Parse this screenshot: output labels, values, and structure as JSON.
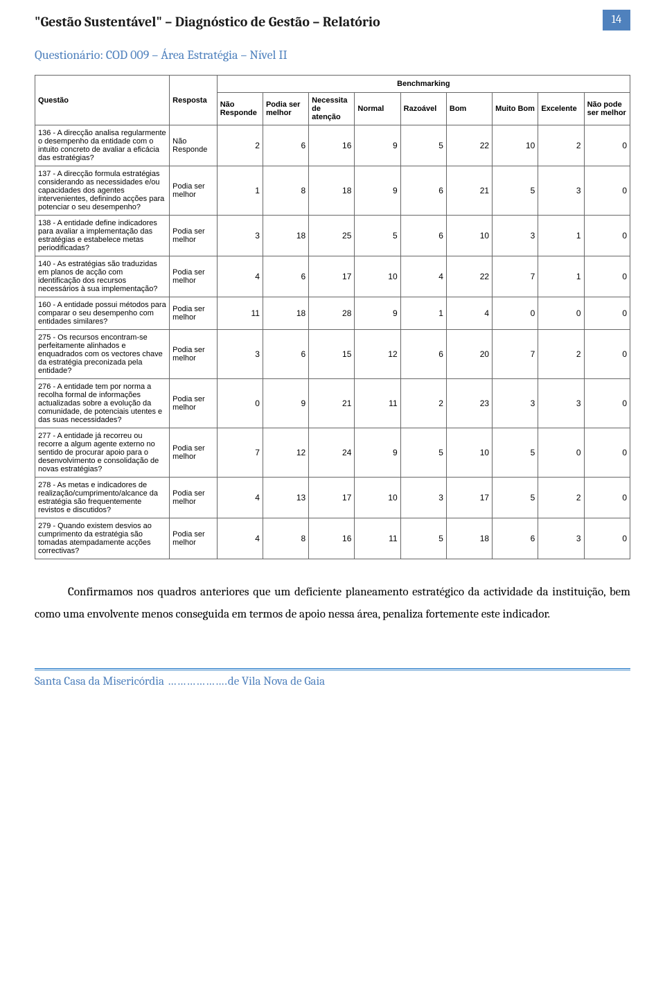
{
  "page_number": "14",
  "doc_title_quoted": "\"Gestão Sustentável\"",
  "doc_title_rest": " – Diagnóstico de Gestão – Relatório",
  "section_title": "Questionário: COD 009 – Área Estratégia – Nível II",
  "table": {
    "spanning_header": "Benchmarking",
    "columns": {
      "questao": "Questão",
      "resposta": "Resposta",
      "nao_responde": "Não Responde",
      "podia_ser_melhor": "Podia ser melhor",
      "necessita_de_atencao": "Necessita de atenção",
      "normal": "Normal",
      "razoavel": "Razoável",
      "bom": "Bom",
      "muito_bom": "Muito Bom",
      "excelente": "Excelente",
      "nao_pode_ser_melhor": "Não pode ser melhor"
    },
    "rows": [
      {
        "q": "136 - A direcção analisa regularmente o desempenho da entidade com o intuito concreto de avaliar a eficácia das estratégias?",
        "r": "Não Responde",
        "v": [
          2,
          6,
          16,
          9,
          5,
          22,
          10,
          2,
          0
        ]
      },
      {
        "q": "137 - A direcção formula estratégias considerando as necessidades e/ou capacidades dos agentes intervenientes, definindo acções para potenciar o seu desempenho?",
        "r": "Podia ser melhor",
        "v": [
          1,
          8,
          18,
          9,
          6,
          21,
          5,
          3,
          0
        ]
      },
      {
        "q": "138 - A entidade define indicadores para avaliar a implementação das estratégias e estabelece metas periodificadas?",
        "r": "Podia ser melhor",
        "v": [
          3,
          18,
          25,
          5,
          6,
          10,
          3,
          1,
          0
        ]
      },
      {
        "q": "140 - As estratégias são traduzidas em planos de acção com identificação dos recursos necessários à sua implementação?",
        "r": "Podia ser melhor",
        "v": [
          4,
          6,
          17,
          10,
          4,
          22,
          7,
          1,
          0
        ]
      },
      {
        "q": "160 - A entidade possui métodos para comparar o seu desempenho com entidades similares?",
        "r": "Podia ser melhor",
        "v": [
          11,
          18,
          28,
          9,
          1,
          4,
          0,
          0,
          0
        ]
      },
      {
        "q": "275 - Os recursos encontram-se perfeitamente alinhados e enquadrados com os vectores chave da estratégia preconizada pela entidade?",
        "r": "Podia ser melhor",
        "v": [
          3,
          6,
          15,
          12,
          6,
          20,
          7,
          2,
          0
        ]
      },
      {
        "q": "276 - A entidade tem por norma a recolha formal de informações actualizadas sobre a evolução da comunidade, de potenciais utentes e das suas necessidades?",
        "r": "Podia ser melhor",
        "v": [
          0,
          9,
          21,
          11,
          2,
          23,
          3,
          3,
          0
        ]
      },
      {
        "q": "277 - A entidade já recorreu ou recorre a algum agente externo no sentido de procurar apoio para o desenvolvimento e consolidação de novas estratégias?",
        "r": "Podia ser melhor",
        "v": [
          7,
          12,
          24,
          9,
          5,
          10,
          5,
          0,
          0
        ]
      },
      {
        "q": "278 - As metas e indicadores de realização/cumprimento/alcance da estratégia são frequentemente revistos e discutidos?",
        "r": "Podia ser melhor",
        "v": [
          4,
          13,
          17,
          10,
          3,
          17,
          5,
          2,
          0
        ]
      },
      {
        "q": "279 - Quando existem desvios ao cumprimento da estratégia são tomadas atempadamente acções correctivas?",
        "r": "Podia ser melhor",
        "v": [
          4,
          8,
          16,
          11,
          5,
          18,
          6,
          3,
          0
        ]
      }
    ]
  },
  "body_paragraph": "Confirmamos nos quadros anteriores que um deficiente planeamento estratégico da actividade da instituição, bem como uma envolvente menos conseguida em termos de apoio nessa área, penaliza fortemente este indicador.",
  "footer_left": "Santa Casa da Misericórdia",
  "footer_dots": " ……………….",
  "footer_right": "de Vila Nova de Gaia",
  "colors": {
    "accent": "#4f81bd",
    "border": "#666666",
    "rule1": "#5b9bd5",
    "rule2": "#7dadd9"
  }
}
